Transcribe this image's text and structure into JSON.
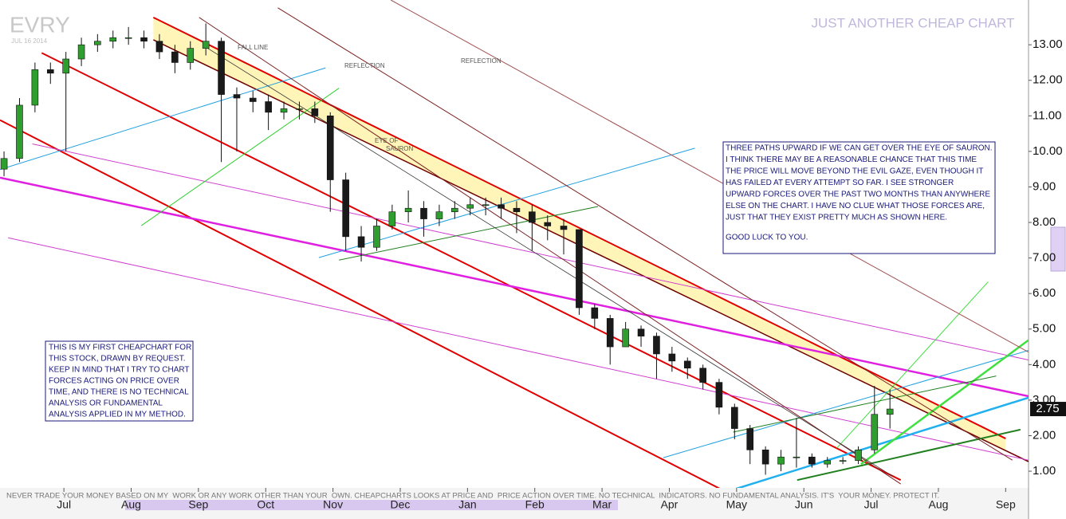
{
  "chart_data": {
    "type": "candlestick",
    "ticker": "EVRY",
    "date": "JUL 16 2014",
    "title": "JUST ANOTHER CHEAP CHART",
    "disclaimer": "NEVER TRADE YOUR MONEY BASED ON MY  WORK OR ANY WORK OTHER THAN YOUR  OWN. CHEAPCHARTS LOOKS AT PRICE AND  PRICE ACTION OVER TIME. NO TECHNICAL  INDICATORS. NO FUNDAMENTAL ANALYSIS. IT'S  YOUR MONEY. PROTECT IT.",
    "annotations": {
      "fall_line": "FALL LINE",
      "reflection_1": "REFLECTION",
      "reflection_2": "REFLECTION",
      "eye_1": "EYE OF",
      "eye_2": "SAURON"
    },
    "note_right": [
      "THREE PATHS UPWARD IF WE CAN GET OVER THE EYE OF SAURON.",
      "I THINK THERE MAY BE A REASONABLE CHANCE THAT THIS TIME",
      "THE PRICE WILL MOVE BEYOND THE EVIL GAZE, EVEN THOUGH IT",
      "HAS FAILED AT EVERY ATTEMPT SO FAR. I SEE STRONGER",
      "UPWARD FORCES OVER THE PAST TWO MONTHS THAN ANYWHERE",
      "ELSE ON THE CHART. I HAVE NO CLUE WHAT THOSE FORCES ARE,",
      "JUST THAT THEY EXIST PRETTY MUCH AS SHOWN HERE."
    ],
    "note_right_signoff": "GOOD LUCK TO YOU.",
    "note_left": [
      "THIS IS MY FIRST CHEAPCHART FOR",
      "THIS STOCK, DRAWN BY REQUEST.",
      "KEEP IN MIND THAT I TRY TO CHART",
      "FORCES ACTING ON PRICE OVER",
      "TIME, AND THERE IS NO TECHNICAL",
      "ANALYSIS OR FUNDAMENTAL",
      "ANALYSIS APPLIED IN MY METHOD."
    ],
    "last_price": 2.75,
    "up_color": "#2e9e2e",
    "down_color": "#1a1a1a",
    "x": [
      -0.89,
      -0.66,
      -0.43,
      -0.2,
      0.03,
      0.26,
      0.5,
      0.73,
      0.96,
      1.19,
      1.42,
      1.65,
      1.88,
      2.11,
      2.34,
      2.57,
      2.81,
      3.04,
      3.27,
      3.5,
      3.73,
      3.96,
      4.19,
      4.42,
      4.65,
      4.88,
      5.12,
      5.35,
      5.58,
      5.81,
      6.04,
      6.27,
      6.5,
      6.73,
      6.96,
      7.19,
      7.43,
      7.66,
      7.89,
      8.12,
      8.35,
      8.58,
      8.81,
      9.04,
      9.27,
      9.5,
      9.74,
      9.97,
      10.2,
      10.43,
      10.66,
      10.89,
      11.12,
      11.35,
      11.58,
      11.81,
      12.05,
      12.28
    ],
    "open": [
      9.5,
      9.8,
      11.3,
      12.3,
      12.2,
      12.6,
      13.0,
      13.1,
      13.2,
      13.2,
      13.1,
      12.8,
      12.5,
      12.9,
      13.1,
      11.6,
      11.5,
      11.4,
      11.1,
      11.2,
      11.2,
      11.0,
      9.2,
      7.6,
      7.3,
      7.9,
      8.3,
      8.4,
      8.1,
      8.3,
      8.4,
      8.5,
      8.5,
      8.4,
      8.3,
      8.0,
      7.9,
      7.8,
      5.6,
      5.3,
      4.5,
      5.0,
      4.8,
      4.3,
      4.1,
      3.9,
      3.5,
      2.8,
      2.2,
      1.6,
      1.2,
      1.4,
      1.4,
      1.2,
      1.3,
      1.3,
      1.6,
      2.6
    ],
    "high": [
      10.0,
      11.5,
      12.5,
      12.5,
      12.8,
      13.2,
      13.3,
      13.4,
      13.5,
      13.4,
      13.3,
      13.0,
      13.1,
      13.6,
      13.2,
      11.8,
      11.7,
      11.6,
      11.4,
      11.4,
      11.4,
      11.1,
      9.4,
      7.9,
      8.1,
      8.5,
      8.9,
      8.6,
      8.5,
      8.6,
      8.7,
      8.7,
      8.7,
      8.6,
      8.5,
      8.2,
      8.1,
      7.8,
      5.7,
      5.4,
      5.2,
      5.1,
      4.9,
      4.5,
      4.2,
      4.0,
      3.6,
      2.9,
      2.3,
      1.7,
      1.6,
      2.5,
      1.5,
      1.4,
      1.4,
      1.7,
      3.4,
      3.3
    ],
    "low": [
      9.3,
      9.7,
      11.1,
      11.9,
      10.0,
      12.4,
      12.8,
      12.9,
      13.0,
      12.9,
      12.6,
      12.2,
      12.3,
      12.7,
      9.7,
      10.0,
      11.1,
      10.6,
      10.9,
      10.9,
      10.8,
      8.3,
      7.2,
      6.9,
      7.2,
      7.8,
      8.0,
      7.6,
      7.9,
      8.1,
      8.2,
      8.2,
      8.1,
      7.7,
      7.2,
      7.5,
      7.1,
      5.4,
      5.0,
      4.0,
      4.5,
      4.5,
      3.6,
      3.8,
      3.6,
      3.3,
      2.6,
      1.9,
      1.2,
      0.9,
      1.0,
      1.1,
      1.1,
      1.1,
      1.2,
      1.2,
      1.5,
      2.2
    ],
    "close": [
      9.8,
      11.3,
      12.3,
      12.2,
      12.6,
      13.0,
      13.1,
      13.2,
      13.2,
      13.1,
      12.8,
      12.5,
      12.9,
      13.1,
      11.6,
      11.5,
      11.4,
      11.1,
      11.2,
      11.2,
      11.0,
      9.2,
      7.6,
      7.3,
      7.9,
      8.3,
      8.4,
      8.1,
      8.3,
      8.4,
      8.5,
      8.5,
      8.4,
      8.3,
      8.0,
      7.9,
      7.8,
      5.6,
      5.3,
      4.5,
      5.0,
      4.8,
      4.3,
      4.1,
      3.9,
      3.5,
      2.8,
      2.2,
      1.6,
      1.2,
      1.4,
      1.4,
      1.2,
      1.3,
      1.3,
      1.6,
      2.6,
      2.75
    ],
    "channel": {
      "color": "#fff3a8",
      "x": [
        1.33,
        14.0
      ],
      "upper": [
        13.77,
        1.92
      ],
      "lower": [
        13.14,
        1.57
      ]
    },
    "trendlines": [
      {
        "color": "#e00000",
        "width": 2,
        "x": [
          -0.33,
          12.44
        ],
        "y": [
          12.77,
          0.75
        ]
      },
      {
        "color": "#e00000",
        "width": 2,
        "x": [
          -0.95,
          10.43
        ],
        "y": [
          10.88,
          -0.15
        ]
      },
      {
        "color": "#e00000",
        "width": 2,
        "x": [
          1.33,
          14.0
        ],
        "y": [
          13.77,
          1.92
        ]
      },
      {
        "color": "#700000",
        "width": 1.5,
        "x": [
          1.33,
          14.34
        ],
        "y": [
          13.14,
          1.27
        ]
      },
      {
        "color": "#e020e0",
        "width": 2.5,
        "x": [
          -0.95,
          14.34
        ],
        "y": [
          9.26,
          3.11
        ]
      },
      {
        "color": "#d040d0",
        "width": 1,
        "x": [
          -0.47,
          14.34
        ],
        "y": [
          10.21,
          4.13
        ]
      },
      {
        "color": "#d040d0",
        "width": 1,
        "x": [
          -0.83,
          14.34
        ],
        "y": [
          7.57,
          1.31
        ]
      },
      {
        "color": "#20a0e0",
        "width": 1,
        "x": [
          -0.95,
          3.89
        ],
        "y": [
          9.49,
          12.35
        ]
      },
      {
        "color": "#20a0e0",
        "width": 1,
        "x": [
          3.79,
          9.38
        ],
        "y": [
          7.01,
          10.09
        ]
      },
      {
        "color": "#20a0e0",
        "width": 1,
        "x": [
          8.91,
          14.34
        ],
        "y": [
          1.38,
          4.4
        ]
      },
      {
        "color": "#20b0f0",
        "width": 2.5,
        "x": [
          9.95,
          14.34
        ],
        "y": [
          0.48,
          3.07
        ]
      },
      {
        "color": "#30d030",
        "width": 1,
        "x": [
          1.15,
          4.09
        ],
        "y": [
          7.91,
          11.78
        ]
      },
      {
        "color": "#208020",
        "width": 1,
        "x": [
          4.09,
          7.94
        ],
        "y": [
          6.94,
          8.45
        ]
      },
      {
        "color": "#40e040",
        "width": 2.5,
        "x": [
          11.85,
          14.34
        ],
        "y": [
          1.2,
          4.69
        ]
      },
      {
        "color": "#40e040",
        "width": 1,
        "x": [
          11.49,
          13.74
        ],
        "y": [
          1.65,
          6.33
        ]
      },
      {
        "color": "#208020",
        "width": 2,
        "x": [
          10.9,
          14.22
        ],
        "y": [
          0.75,
          2.17
        ]
      },
      {
        "color": "#208020",
        "width": 1,
        "x": [
          9.95,
          13.86
        ],
        "y": [
          2.1,
          3.68
        ]
      },
      {
        "color": "#7a2020",
        "width": 1,
        "x": [
          2.01,
          12.44
        ],
        "y": [
          13.77,
          0.64
        ]
      },
      {
        "color": "#7a2020",
        "width": 1,
        "x": [
          3.18,
          14.1
        ],
        "y": [
          14.04,
          1.31
        ]
      },
      {
        "color": "#a05050",
        "width": 1,
        "x": [
          4.86,
          14.34
        ],
        "y": [
          14.26,
          4.35
        ]
      },
      {
        "color": "#333333",
        "width": 0.8,
        "x": [
          2.13,
          12.32
        ],
        "y": [
          12.91,
          0.86
        ]
      }
    ],
    "xlim": [
      -0.95,
      14.34
    ],
    "ylim": [
      0.53,
      14.26
    ],
    "xticks": [
      {
        "value": 0,
        "label": "Jul"
      },
      {
        "value": 1,
        "label": "Aug"
      },
      {
        "value": 2,
        "label": "Sep"
      },
      {
        "value": 3,
        "label": "Oct"
      },
      {
        "value": 4,
        "label": "Nov"
      },
      {
        "value": 5,
        "label": "Dec"
      },
      {
        "value": 6,
        "label": "Jan"
      },
      {
        "value": 7,
        "label": "Feb"
      },
      {
        "value": 8,
        "label": "Mar"
      },
      {
        "value": 9,
        "label": "Apr"
      },
      {
        "value": 10,
        "label": "May"
      },
      {
        "value": 11,
        "label": "Jun"
      },
      {
        "value": 12,
        "label": "Jul"
      },
      {
        "value": 13,
        "label": "Aug"
      },
      {
        "value": 14,
        "label": "Sep"
      }
    ],
    "yticks": [
      {
        "value": 1,
        "label": "1.00"
      },
      {
        "value": 2,
        "label": "2.00"
      },
      {
        "value": 3,
        "label": "3.00"
      },
      {
        "value": 4,
        "label": "4.00"
      },
      {
        "value": 5,
        "label": "5.00"
      },
      {
        "value": 6,
        "label": "6.00"
      },
      {
        "value": 7,
        "label": "7.00"
      },
      {
        "value": 8,
        "label": "8.00"
      },
      {
        "value": 9,
        "label": "9.00"
      },
      {
        "value": 10,
        "label": "10.00"
      },
      {
        "value": 11,
        "label": "11.00"
      },
      {
        "value": 12,
        "label": "12.00"
      },
      {
        "value": 13,
        "label": "13.00"
      }
    ]
  }
}
